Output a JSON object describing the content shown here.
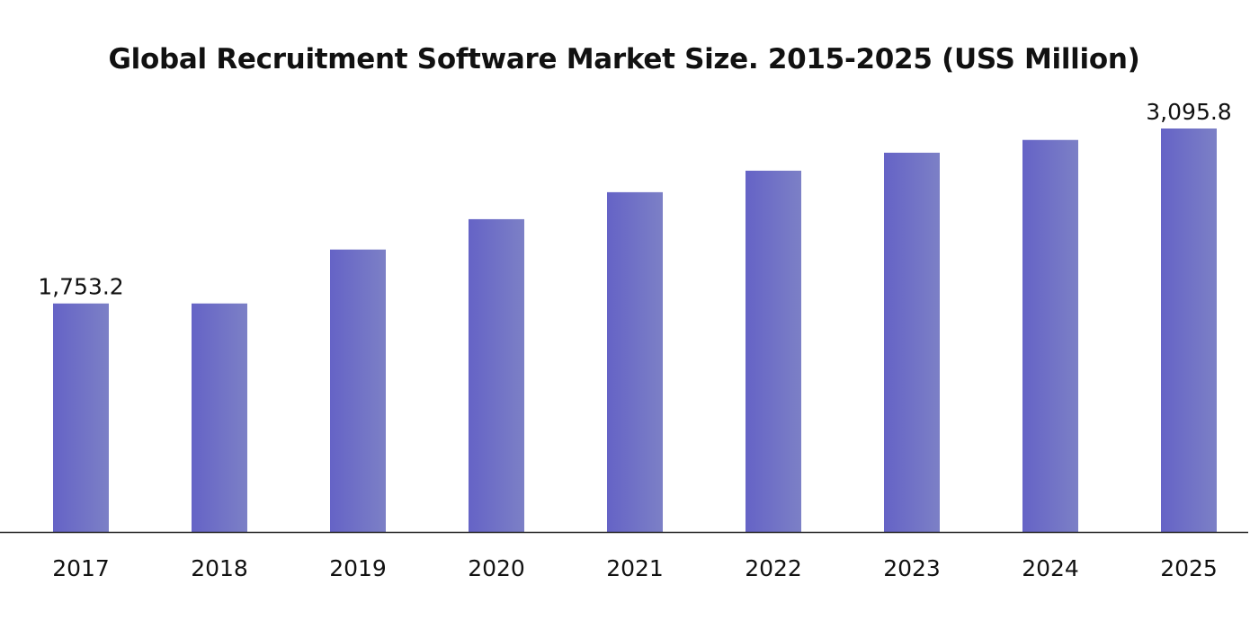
{
  "chart_data": {
    "type": "bar",
    "title": "Global Recruitment Software Market Size. 2015-2025 (USS Million)",
    "xlabel": "",
    "ylabel": "",
    "categories": [
      "2017",
      "2018",
      "2019",
      "2020",
      "2021",
      "2022",
      "2023",
      "2024",
      "2025"
    ],
    "values": [
      1753.2,
      1753.2,
      2167,
      2400,
      2607,
      2772,
      2910,
      3008,
      3095.8
    ],
    "data_labels": [
      "1,753.2",
      "",
      "",
      "",
      "",
      "",
      "",
      "",
      "3,095.8"
    ],
    "ylim": [
      0,
      3095.8
    ],
    "grid": false,
    "legend": "none",
    "bar_color_start": "#6563c6",
    "bar_color_end": "#7c80c6",
    "axis_color": "#222222"
  }
}
